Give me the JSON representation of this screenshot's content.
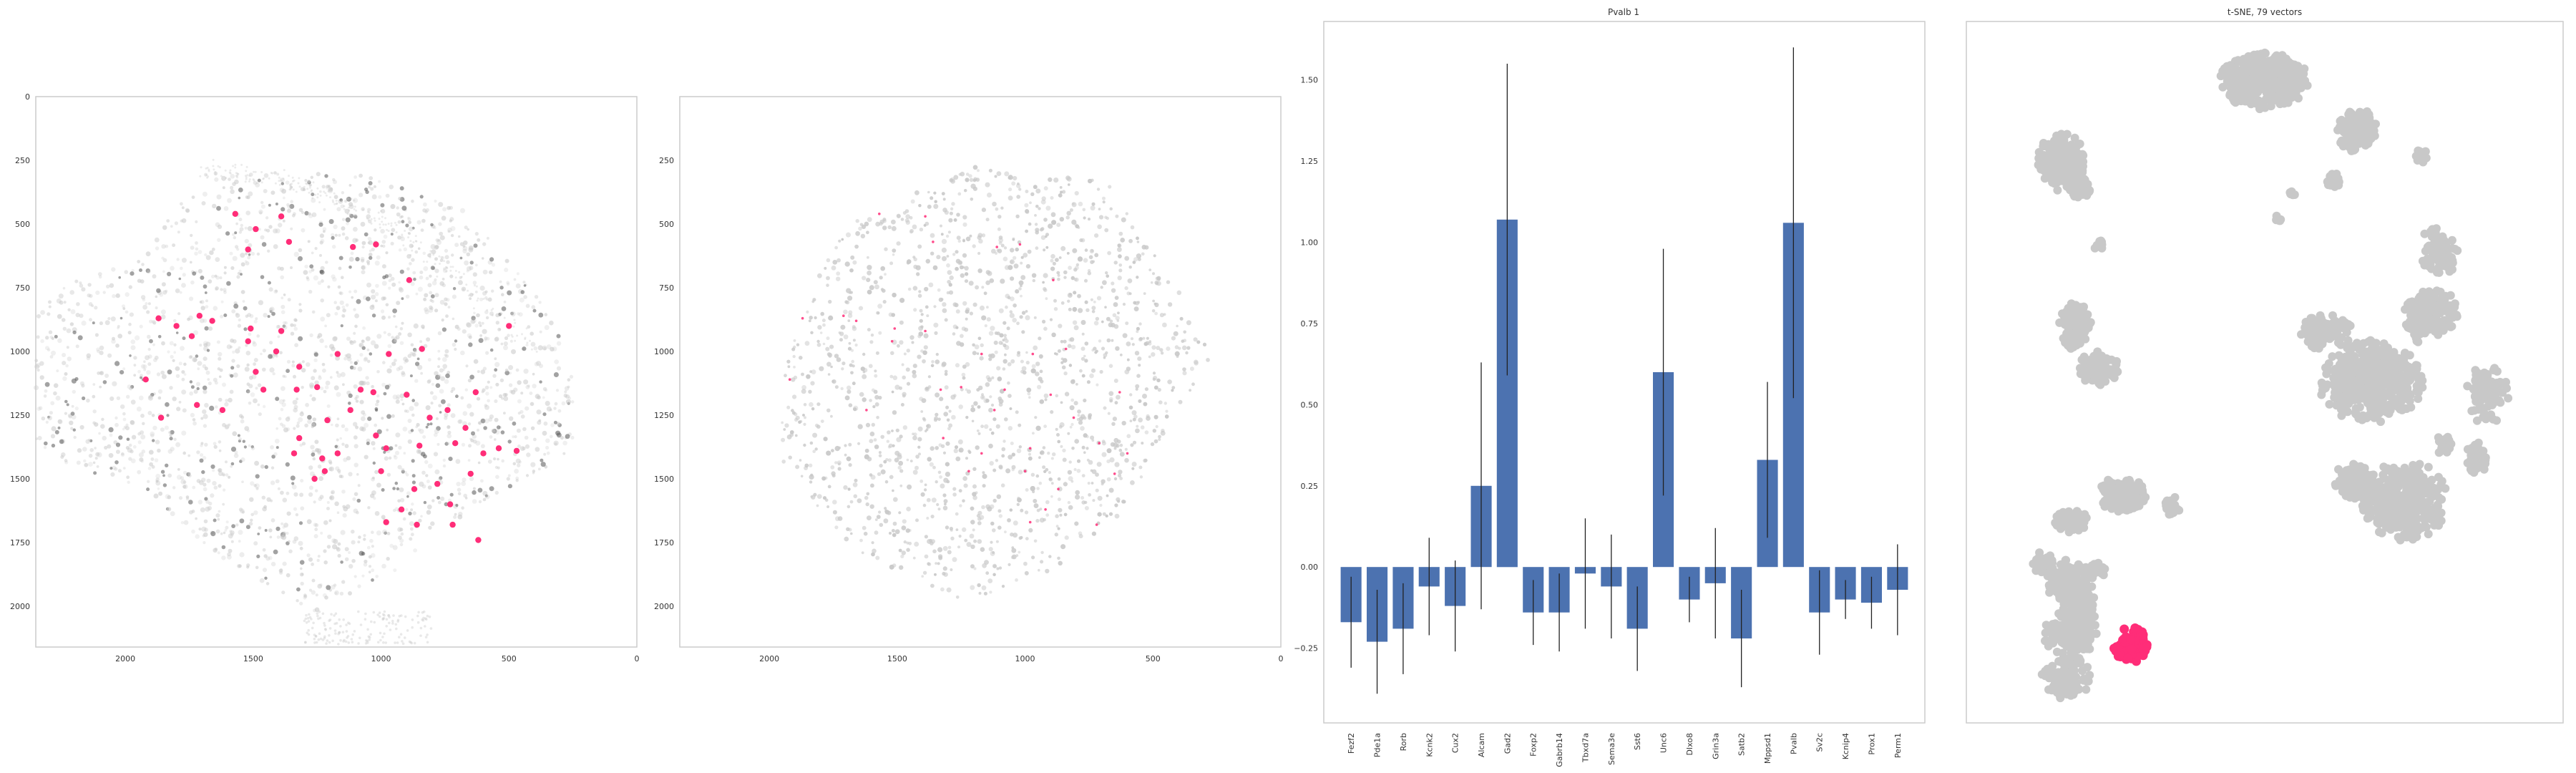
{
  "colors": {
    "background": "#ffffff",
    "axis_frame": "#cccccc",
    "cell_gray": "#c9c9c9",
    "cell_dark": "#555555",
    "highlight": "#ff2d78",
    "bar": "#4c72b0",
    "errorbar": "#222222",
    "tsne_gray": "#c8c8c8"
  },
  "chart_data": [
    {
      "type": "scatter",
      "name": "tissue-map-1",
      "title": "",
      "xlim": [
        2350,
        0
      ],
      "ylim": [
        2160,
        0
      ],
      "xticks": [
        2000,
        1500,
        1000,
        500,
        0
      ],
      "yticks": [
        0,
        250,
        500,
        750,
        1000,
        1250,
        1500,
        1750,
        2000
      ],
      "highlight_label": "Pvalb 1",
      "highlighted_points": [
        [
          1570,
          460
        ],
        [
          1390,
          470
        ],
        [
          1490,
          520
        ],
        [
          1360,
          570
        ],
        [
          1520,
          600
        ],
        [
          1110,
          590
        ],
        [
          1020,
          580
        ],
        [
          1710,
          860
        ],
        [
          1870,
          870
        ],
        [
          1800,
          900
        ],
        [
          1660,
          880
        ],
        [
          1510,
          910
        ],
        [
          1390,
          920
        ],
        [
          890,
          720
        ],
        [
          1740,
          940
        ],
        [
          1520,
          960
        ],
        [
          1410,
          1000
        ],
        [
          1320,
          1060
        ],
        [
          1170,
          1010
        ],
        [
          970,
          1010
        ],
        [
          500,
          900
        ],
        [
          840,
          990
        ],
        [
          1490,
          1080
        ],
        [
          1330,
          1150
        ],
        [
          1460,
          1150
        ],
        [
          1250,
          1140
        ],
        [
          1080,
          1150
        ],
        [
          1920,
          1110
        ],
        [
          1860,
          1260
        ],
        [
          1620,
          1230
        ],
        [
          1720,
          1210
        ],
        [
          1210,
          1270
        ],
        [
          1120,
          1230
        ],
        [
          1030,
          1160
        ],
        [
          900,
          1170
        ],
        [
          630,
          1160
        ],
        [
          740,
          1230
        ],
        [
          810,
          1260
        ],
        [
          1020,
          1330
        ],
        [
          1320,
          1340
        ],
        [
          1340,
          1400
        ],
        [
          1230,
          1420
        ],
        [
          1170,
          1400
        ],
        [
          980,
          1380
        ],
        [
          850,
          1370
        ],
        [
          670,
          1300
        ],
        [
          710,
          1360
        ],
        [
          600,
          1400
        ],
        [
          540,
          1380
        ],
        [
          470,
          1390
        ],
        [
          1000,
          1470
        ],
        [
          1220,
          1470
        ],
        [
          1260,
          1500
        ],
        [
          870,
          1540
        ],
        [
          780,
          1520
        ],
        [
          650,
          1480
        ],
        [
          730,
          1600
        ],
        [
          920,
          1620
        ],
        [
          980,
          1670
        ],
        [
          860,
          1680
        ],
        [
          620,
          1740
        ],
        [
          720,
          1680
        ]
      ]
    },
    {
      "type": "scatter",
      "name": "tissue-map-2",
      "title": "",
      "xlim": [
        2350,
        0
      ],
      "ylim": [
        2160,
        0
      ],
      "xticks": [
        2000,
        1500,
        1000,
        500,
        0
      ],
      "yticks": [
        250,
        500,
        750,
        1000,
        1250,
        1500,
        1750,
        2000
      ],
      "highlight_label": "Pvalb 1",
      "highlighted_points": [
        [
          1570,
          460
        ],
        [
          1390,
          470
        ],
        [
          1360,
          570
        ],
        [
          1110,
          590
        ],
        [
          1020,
          580
        ],
        [
          1710,
          860
        ],
        [
          1870,
          870
        ],
        [
          1660,
          880
        ],
        [
          1510,
          910
        ],
        [
          1390,
          920
        ],
        [
          890,
          720
        ],
        [
          1520,
          960
        ],
        [
          1170,
          1010
        ],
        [
          970,
          1010
        ],
        [
          840,
          990
        ],
        [
          1330,
          1150
        ],
        [
          1250,
          1140
        ],
        [
          1080,
          1150
        ],
        [
          1920,
          1110
        ],
        [
          1620,
          1230
        ],
        [
          1120,
          1230
        ],
        [
          900,
          1170
        ],
        [
          630,
          1160
        ],
        [
          810,
          1260
        ],
        [
          1320,
          1340
        ],
        [
          1170,
          1400
        ],
        [
          980,
          1380
        ],
        [
          710,
          1360
        ],
        [
          600,
          1400
        ],
        [
          1000,
          1470
        ],
        [
          1220,
          1470
        ],
        [
          870,
          1540
        ],
        [
          650,
          1480
        ],
        [
          920,
          1620
        ],
        [
          980,
          1670
        ],
        [
          720,
          1680
        ]
      ]
    },
    {
      "type": "bar",
      "name": "pvalb-gene-bars",
      "title": "Pvalb 1",
      "categories": [
        "Fezf2",
        "Pde1a",
        "Rorb",
        "Kcnk2",
        "Cux2",
        "Alcam",
        "Gad2",
        "Foxp2",
        "Gabrb14",
        "Tbxd7a",
        "Sema3e",
        "Sst6",
        "Unc6",
        "Dlxo8",
        "Grin3a",
        "Satb2",
        "Mppsd1",
        "Pvalb",
        "Sv2c",
        "Kcnip4",
        "Prox1",
        "Perm1"
      ],
      "values": [
        -0.17,
        -0.23,
        -0.19,
        -0.06,
        -0.12,
        0.25,
        1.07,
        -0.14,
        -0.14,
        -0.02,
        -0.06,
        -0.19,
        0.6,
        -0.1,
        -0.05,
        -0.22,
        0.33,
        1.06,
        -0.14,
        -0.1,
        -0.11,
        -0.07
      ],
      "errors": [
        0.14,
        0.16,
        0.14,
        0.15,
        0.14,
        0.38,
        0.48,
        0.1,
        0.12,
        0.17,
        0.16,
        0.13,
        0.38,
        0.07,
        0.17,
        0.15,
        0.24,
        0.54,
        0.13,
        0.06,
        0.08,
        0.14
      ],
      "ylim": [
        -0.48,
        1.68
      ],
      "yticks": [
        -0.25,
        0.0,
        0.25,
        0.5,
        0.75,
        1.0,
        1.25,
        1.5
      ],
      "ytick_labels": [
        "−0.25",
        "0.00",
        "0.25",
        "0.50",
        "0.75",
        "1.00",
        "1.25",
        "1.50"
      ],
      "xlabel": "",
      "ylabel": ""
    },
    {
      "type": "scatter",
      "name": "tsne-embedding",
      "title": "t-SNE, 79 vectors",
      "xlim": [
        0,
        100
      ],
      "ylim": [
        0,
        100
      ],
      "clusters": [
        {
          "cx": 16,
          "cy": 81,
          "rx": 4.8,
          "ry": 4.2,
          "n": 300,
          "highlight": false
        },
        {
          "cx": 20,
          "cy": 77,
          "rx": 2.2,
          "ry": 1.6,
          "n": 60,
          "highlight": false
        },
        {
          "cx": 24,
          "cy": 68,
          "rx": 1.0,
          "ry": 1.0,
          "n": 12,
          "highlight": false
        },
        {
          "cx": 60,
          "cy": 94,
          "rx": 9.0,
          "ry": 4.2,
          "n": 420,
          "highlight": false
        },
        {
          "cx": 80,
          "cy": 86,
          "rx": 4.2,
          "ry": 3.2,
          "n": 180,
          "highlight": false
        },
        {
          "cx": 75,
          "cy": 78,
          "rx": 1.4,
          "ry": 1.1,
          "n": 30,
          "highlight": false
        },
        {
          "cx": 66,
          "cy": 76,
          "rx": 0.7,
          "ry": 0.7,
          "n": 8,
          "highlight": false
        },
        {
          "cx": 63,
          "cy": 72,
          "rx": 0.7,
          "ry": 0.7,
          "n": 6,
          "highlight": false
        },
        {
          "cx": 94,
          "cy": 82,
          "rx": 1.5,
          "ry": 1.0,
          "n": 22,
          "highlight": false
        },
        {
          "cx": 96,
          "cy": 70,
          "rx": 1.6,
          "ry": 1.0,
          "n": 16,
          "highlight": false
        },
        {
          "cx": 98,
          "cy": 66,
          "rx": 3.6,
          "ry": 3.6,
          "n": 90,
          "highlight": false
        },
        {
          "cx": 93,
          "cy": 56,
          "rx": 2.6,
          "ry": 3.6,
          "n": 90,
          "highlight": false
        },
        {
          "cx": 83,
          "cy": 46,
          "rx": 10.5,
          "ry": 6.0,
          "n": 500,
          "highlight": false
        },
        {
          "cx": 73,
          "cy": 54,
          "rx": 5.5,
          "ry": 2.6,
          "n": 110,
          "highlight": false
        },
        {
          "cx": 90,
          "cy": 27,
          "rx": 9.0,
          "ry": 6.0,
          "n": 360,
          "highlight": false
        },
        {
          "cx": 79,
          "cy": 30,
          "rx": 4.0,
          "ry": 2.6,
          "n": 90,
          "highlight": false
        },
        {
          "cx": 84,
          "cy": 42,
          "rx": 2.0,
          "ry": 1.4,
          "n": 24,
          "highlight": false
        },
        {
          "cx": 99,
          "cy": 36,
          "rx": 1.8,
          "ry": 1.6,
          "n": 30,
          "highlight": false
        },
        {
          "cx": 108,
          "cy": 44,
          "rx": 4.4,
          "ry": 4.4,
          "n": 80,
          "highlight": false
        },
        {
          "cx": 106,
          "cy": 34,
          "rx": 2.2,
          "ry": 2.4,
          "n": 60,
          "highlight": false
        },
        {
          "cx": 97,
          "cy": 57,
          "rx": 4.6,
          "ry": 3.6,
          "n": 140,
          "highlight": false
        },
        {
          "cx": 19,
          "cy": 55,
          "rx": 3.2,
          "ry": 3.6,
          "n": 150,
          "highlight": false
        },
        {
          "cx": 29,
          "cy": 28,
          "rx": 4.8,
          "ry": 2.6,
          "n": 180,
          "highlight": false
        },
        {
          "cx": 24,
          "cy": 16,
          "rx": 1.5,
          "ry": 1.4,
          "n": 30,
          "highlight": false
        },
        {
          "cx": 40,
          "cy": 26,
          "rx": 1.6,
          "ry": 1.6,
          "n": 30,
          "highlight": false
        },
        {
          "cx": 18,
          "cy": 24,
          "rx": 3.2,
          "ry": 2.0,
          "n": 60,
          "highlight": false
        },
        {
          "cx": 12,
          "cy": 17,
          "rx": 2.0,
          "ry": 1.8,
          "n": 40,
          "highlight": false
        },
        {
          "cx": 18,
          "cy": 14,
          "rx": 5.0,
          "ry": 3.6,
          "n": 160,
          "highlight": false
        },
        {
          "cx": 20,
          "cy": 10,
          "rx": 3.6,
          "ry": 2.8,
          "n": 90,
          "highlight": false
        },
        {
          "cx": 18,
          "cy": 6,
          "rx": 5.6,
          "ry": 3.6,
          "n": 130,
          "highlight": false
        },
        {
          "cx": 24,
          "cy": 48,
          "rx": 4.0,
          "ry": 2.6,
          "n": 90,
          "highlight": false
        },
        {
          "cx": 31,
          "cy": 4,
          "rx": 3.4,
          "ry": 2.6,
          "n": 90,
          "highlight": true
        },
        {
          "cx": 17,
          "cy": -1,
          "rx": 5.0,
          "ry": 3.4,
          "n": 110,
          "highlight": false
        }
      ]
    }
  ]
}
